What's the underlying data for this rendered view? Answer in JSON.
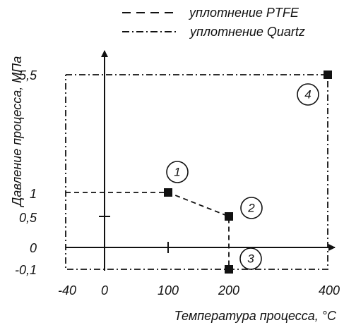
{
  "chart_data": {
    "type": "line",
    "x_axis": {
      "label": "Температура процесса, °C",
      "ticks": [
        {
          "value": -40,
          "label": "-40"
        },
        {
          "value": 0,
          "label": "0"
        },
        {
          "value": 100,
          "label": "100"
        },
        {
          "value": 200,
          "label": "200"
        },
        {
          "value": 400,
          "label": "400"
        }
      ],
      "range": [
        -40,
        400
      ]
    },
    "y_axis": {
      "label": "Давление процесса, МПа",
      "ticks": [
        {
          "value": -0.1,
          "label": "-0,1"
        },
        {
          "value": 0,
          "label": "0"
        },
        {
          "value": 0.5,
          "label": "0,5"
        },
        {
          "value": 1,
          "label": "1"
        },
        {
          "value": 5.5,
          "label": "5,5"
        }
      ],
      "range": [
        -0.1,
        5.5
      ]
    },
    "legend": [
      {
        "label": "уплотнение PTFE",
        "style": "dashed"
      },
      {
        "label": "уплотнение Quartz",
        "style": "dashdot"
      }
    ],
    "series": [
      {
        "name": "уплотнение PTFE",
        "style": "dashed",
        "points": [
          {
            "x": -40,
            "y": 1
          },
          {
            "x": 100,
            "y": 1
          },
          {
            "x": 200,
            "y": 0.5
          },
          {
            "x": 200,
            "y": -0.1
          }
        ]
      },
      {
        "name": "уплотнение Quartz",
        "style": "dashdot",
        "points": [
          {
            "x": -40,
            "y": 5.5
          },
          {
            "x": 400,
            "y": 5.5
          },
          {
            "x": 400,
            "y": -0.1
          },
          {
            "x": -40,
            "y": -0.1
          },
          {
            "x": -40,
            "y": 5.5
          }
        ]
      }
    ],
    "markers": [
      {
        "label": "1",
        "x": 100,
        "y": 1
      },
      {
        "label": "2",
        "x": 200,
        "y": 0.5
      },
      {
        "label": "3",
        "x": 200,
        "y": -0.1
      },
      {
        "label": "4",
        "x": 400,
        "y": 5.5
      }
    ],
    "grid": false,
    "legend_placement": "top-right",
    "colors": {
      "line": "#111111",
      "marker": "#111111",
      "background": "#ffffff"
    }
  }
}
